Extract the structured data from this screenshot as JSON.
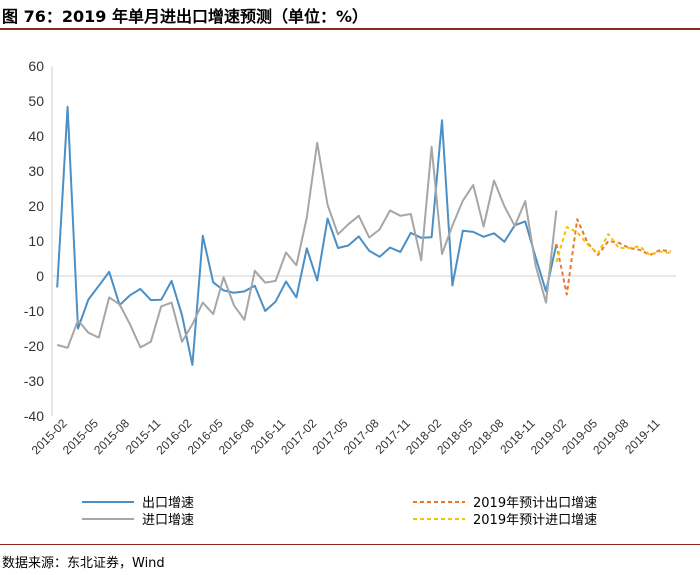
{
  "header": {
    "title": "图 76：2019 年单月进出口增速预测（单位：%）"
  },
  "footer": {
    "source": "数据来源：东北证券，Wind"
  },
  "chart_data": {
    "type": "line",
    "title": "2019 年单月进出口增速预测（单位：%）",
    "ylim": [
      -40,
      60
    ],
    "yticks": [
      -40,
      -30,
      -20,
      -10,
      0,
      10,
      20,
      30,
      40,
      50,
      60
    ],
    "x_tick_labels": [
      "2015-02",
      "2015-05",
      "2015-08",
      "2015-11",
      "2016-02",
      "2016-05",
      "2016-08",
      "2016-11",
      "2017-02",
      "2017-05",
      "2017-08",
      "2017-11",
      "2018-02",
      "2018-05",
      "2018-08",
      "2018-11",
      "2019-02",
      "2019-05",
      "2019-08",
      "2019-11"
    ],
    "x_start": "2015-01",
    "series": [
      {
        "name": "出口增速",
        "color": "#4a8fc6",
        "dash": "",
        "start_index": 0,
        "values": [
          -3.3,
          48.3,
          -15,
          -6.7,
          -2.8,
          1.2,
          -8.3,
          -5.5,
          -3.7,
          -6.9,
          -6.8,
          -1.4,
          -11.2,
          -25.4,
          11.5,
          -1.8,
          -4.1,
          -4.8,
          -4.4,
          -2.8,
          -10.0,
          -7.3,
          -1.6,
          -6.1,
          7.9,
          -1.3,
          16.4,
          8.0,
          8.7,
          11.3,
          7.2,
          5.5,
          8.1,
          6.9,
          12.3,
          10.9,
          11.1,
          44.5,
          -2.7,
          12.9,
          12.6,
          11.2,
          12.2,
          9.8,
          14.5,
          15.6,
          5.4,
          -4.4,
          9.1
        ]
      },
      {
        "name": "进口增速",
        "color": "#a6a6a6",
        "dash": "",
        "start_index": 0,
        "values": [
          -19.7,
          -20.5,
          -12.7,
          -16.2,
          -17.6,
          -6.1,
          -8.1,
          -13.8,
          -20.4,
          -18.8,
          -8.7,
          -7.6,
          -18.8,
          -13.8,
          -7.6,
          -10.9,
          -0.4,
          -8.4,
          -12.5,
          1.5,
          -1.9,
          -1.4,
          6.7,
          3.1,
          16.7,
          38.1,
          20.3,
          11.9,
          14.8,
          17.2,
          11.0,
          13.3,
          18.7,
          17.2,
          17.7,
          4.5,
          36.9,
          6.3,
          14.4,
          21.5,
          26.0,
          14.1,
          27.3,
          19.9,
          14.3,
          21.4,
          3.0,
          -7.6,
          18.7
        ]
      },
      {
        "name": "2019年预计出口增速",
        "color": "#e8782e",
        "dash": "4,3",
        "start_index": 48,
        "values": [
          9.1,
          -5.3,
          16.2,
          9.5,
          6.0,
          10.0,
          9.5,
          8.0,
          7.5,
          6.0,
          7.5,
          7.0
        ]
      },
      {
        "name": "2019年预计进口增速",
        "color": "#f5c400",
        "dash": "4,3",
        "start_index": 48,
        "values": [
          4.0,
          14.0,
          12.5,
          9.0,
          6.5,
          12.0,
          8.0,
          8.0,
          8.5,
          6.0,
          7.0,
          6.5
        ]
      }
    ],
    "legend_position": "bottom"
  }
}
